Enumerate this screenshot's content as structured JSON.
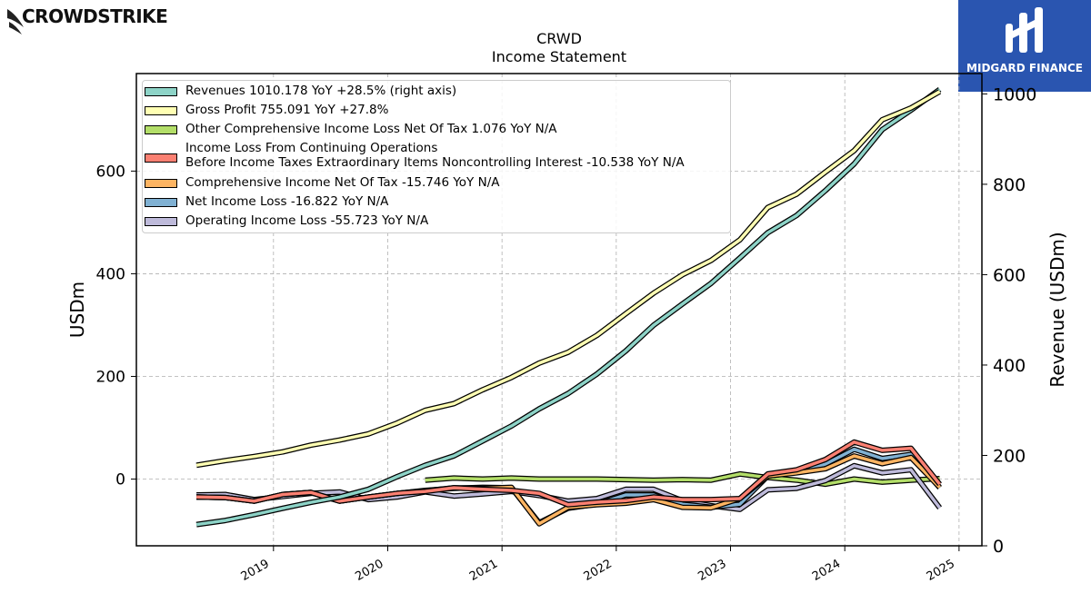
{
  "branding": {
    "left_logo_text": "CROWDSTRIKE",
    "right_logo_text": "MIDGARD FINANCE",
    "right_logo_bg": "#2a55b0"
  },
  "chart_data": {
    "type": "line",
    "title": "CRWD",
    "subtitle": "Income Statement",
    "ylabel": "USDm",
    "ylabel_right": "Revenue (USDm)",
    "ylim": [
      -130,
      790
    ],
    "ylim_right": [
      0,
      1045
    ],
    "xlim": [
      2017.8,
      2025.2
    ],
    "yticks": [
      0,
      200,
      400,
      600
    ],
    "yticks_right": [
      0,
      200,
      400,
      600,
      800,
      1000
    ],
    "xticks": [
      "2019",
      "2020",
      "2021",
      "2022",
      "2023",
      "2024",
      "2025"
    ],
    "grid": true,
    "legend_position": "top-left",
    "series": [
      {
        "name": "Revenues  1010.178 YoY +28.5% (right axis)",
        "color": "#8dd3c7",
        "axis": "right",
        "x": [
          "2018-04-30",
          "2018-07-31",
          "2018-10-31",
          "2019-01-31",
          "2019-04-30",
          "2019-07-31",
          "2019-10-31",
          "2020-01-31",
          "2020-04-30",
          "2020-07-31",
          "2020-10-31",
          "2021-01-31",
          "2021-04-30",
          "2021-07-31",
          "2021-10-31",
          "2022-01-31",
          "2022-04-30",
          "2022-07-31",
          "2022-10-31",
          "2023-01-31",
          "2023-04-30",
          "2023-07-31",
          "2023-10-31",
          "2024-01-31",
          "2024-04-30",
          "2024-07-31",
          "2024-10-31"
        ],
        "values": [
          47,
          56,
          69,
          83,
          96,
          108,
          125,
          153,
          178,
          199,
          232,
          265,
          303,
          337,
          380,
          431,
          488,
          535,
          581,
          637,
          693,
          731,
          786,
          845,
          921,
          964,
          1010
        ]
      },
      {
        "name": "Gross Profit  755.091 YoY +27.8%",
        "color": "#ffffb3",
        "axis": "left",
        "x": [
          "2018-04-30",
          "2018-07-31",
          "2018-10-31",
          "2019-01-31",
          "2019-04-30",
          "2019-07-31",
          "2019-10-31",
          "2020-01-31",
          "2020-04-30",
          "2020-07-31",
          "2020-10-31",
          "2021-01-31",
          "2021-04-30",
          "2021-07-31",
          "2021-10-31",
          "2022-01-31",
          "2022-04-30",
          "2022-07-31",
          "2022-10-31",
          "2023-01-31",
          "2023-04-30",
          "2023-07-31",
          "2023-10-31",
          "2024-01-31",
          "2024-04-30",
          "2024-07-31",
          "2024-10-31"
        ],
        "values": [
          27,
          36,
          44,
          53,
          66,
          76,
          88,
          109,
          134,
          147,
          174,
          198,
          226,
          247,
          280,
          322,
          362,
          398,
          426,
          466,
          529,
          555,
          598,
          640,
          700,
          723,
          755
        ]
      },
      {
        "name": "Other Comprehensive Income Loss Net Of Tax  1.076 YoY N/A",
        "color": "#bebada",
        "swatch_color": "#b3de69",
        "axis": "left",
        "x": [
          "2020-04-30",
          "2020-07-31",
          "2020-10-31",
          "2021-01-31",
          "2021-04-30",
          "2021-07-31",
          "2021-10-31",
          "2022-01-31",
          "2022-04-30",
          "2022-07-31",
          "2022-10-31",
          "2023-01-31",
          "2023-04-30",
          "2023-07-31",
          "2023-10-31",
          "2024-01-31",
          "2024-04-30",
          "2024-07-31",
          "2024-10-31"
        ],
        "values": [
          -2,
          2,
          0,
          2,
          0,
          0,
          0,
          -1,
          -2,
          -1,
          -2,
          10,
          3,
          -2,
          -10,
          0,
          -6,
          -2,
          1
        ]
      },
      {
        "name": "Income Loss From Continuing Operations\nBefore Income Taxes Extraordinary Items Noncontrolling Interest  -10.538 YoY N/A",
        "color": "#fb8072",
        "axis": "left",
        "x": [
          "2018-04-30",
          "2018-07-31",
          "2018-10-31",
          "2019-01-31",
          "2019-04-30",
          "2019-07-31",
          "2019-10-31",
          "2020-01-31",
          "2020-04-30",
          "2020-07-31",
          "2020-10-31",
          "2021-01-31",
          "2021-04-30",
          "2021-07-31",
          "2021-10-31",
          "2022-01-31",
          "2022-04-30",
          "2022-07-31",
          "2022-10-31",
          "2023-01-31",
          "2023-04-30",
          "2023-07-31",
          "2023-10-31",
          "2024-01-31",
          "2024-04-30",
          "2024-07-31",
          "2024-10-31"
        ],
        "values": [
          -35,
          -36,
          -43,
          -30,
          -26,
          -43,
          -35,
          -28,
          -24,
          -17,
          -20,
          -22,
          -28,
          -50,
          -45,
          -42,
          -35,
          -40,
          -40,
          -38,
          10,
          18,
          38,
          72,
          56,
          60,
          -10
        ]
      },
      {
        "name": "Comprehensive Income Net Of Tax  -15.746 YoY N/A",
        "color": "#fdb462",
        "axis": "left",
        "x": [
          "2018-04-30",
          "2018-07-31",
          "2018-10-31",
          "2019-01-31",
          "2019-04-30",
          "2019-07-31",
          "2019-10-31",
          "2020-01-31",
          "2020-04-30",
          "2020-07-31",
          "2020-10-31",
          "2021-01-31",
          "2021-04-30",
          "2021-07-31",
          "2021-10-31",
          "2022-01-31",
          "2022-04-30",
          "2022-07-31",
          "2022-10-31",
          "2023-01-31",
          "2023-04-30",
          "2023-07-31",
          "2023-10-31",
          "2024-01-31",
          "2024-04-30",
          "2024-07-31",
          "2024-10-31"
        ],
        "values": [
          -35,
          -36,
          -43,
          -30,
          -26,
          -43,
          -35,
          -28,
          -23,
          -17,
          -18,
          -16,
          -87,
          -55,
          -50,
          -47,
          -40,
          -55,
          -56,
          -38,
          6,
          12,
          20,
          45,
          30,
          42,
          -16
        ]
      },
      {
        "name": "Net Income Loss  -16.822 YoY N/A",
        "color": "#80b1d3",
        "axis": "left",
        "x": [
          "2018-04-30",
          "2018-07-31",
          "2018-10-31",
          "2019-01-31",
          "2019-04-30",
          "2019-07-31",
          "2019-10-31",
          "2020-01-31",
          "2020-04-30",
          "2020-07-31",
          "2020-10-31",
          "2021-01-31",
          "2021-04-30",
          "2021-07-31",
          "2021-10-31",
          "2022-01-31",
          "2022-04-30",
          "2022-07-31",
          "2022-10-31",
          "2023-01-31",
          "2023-04-30",
          "2023-07-31",
          "2023-10-31",
          "2024-01-31",
          "2024-04-30",
          "2024-07-31",
          "2024-10-31"
        ],
        "values": [
          -35,
          -36,
          -43,
          -30,
          -26,
          -43,
          -35,
          -28,
          -22,
          -18,
          -16,
          -17,
          -85,
          -57,
          -49,
          -31,
          -31,
          -49,
          -55,
          -49,
          6,
          13,
          29,
          58,
          40,
          48,
          -17
        ]
      },
      {
        "name": "Operating Income Loss  -55.723 YoY N/A",
        "color": "#bebada",
        "axis": "left",
        "x": [
          "2018-04-30",
          "2018-07-31",
          "2018-10-31",
          "2019-01-31",
          "2019-04-30",
          "2019-07-31",
          "2019-10-31",
          "2020-01-31",
          "2020-04-30",
          "2020-07-31",
          "2020-10-31",
          "2021-01-31",
          "2021-04-30",
          "2021-07-31",
          "2021-10-31",
          "2022-01-31",
          "2022-04-30",
          "2022-07-31",
          "2022-10-31",
          "2023-01-31",
          "2023-04-30",
          "2023-07-31",
          "2023-10-31",
          "2024-01-31",
          "2024-04-30",
          "2024-07-31",
          "2024-10-31"
        ],
        "values": [
          -31,
          -30,
          -40,
          -34,
          -28,
          -25,
          -40,
          -35,
          -25,
          -33,
          -29,
          -24,
          -32,
          -43,
          -38,
          -20,
          -20,
          -42,
          -52,
          -59,
          -21,
          -18,
          -3,
          26,
          12,
          18,
          -56
        ]
      }
    ]
  }
}
